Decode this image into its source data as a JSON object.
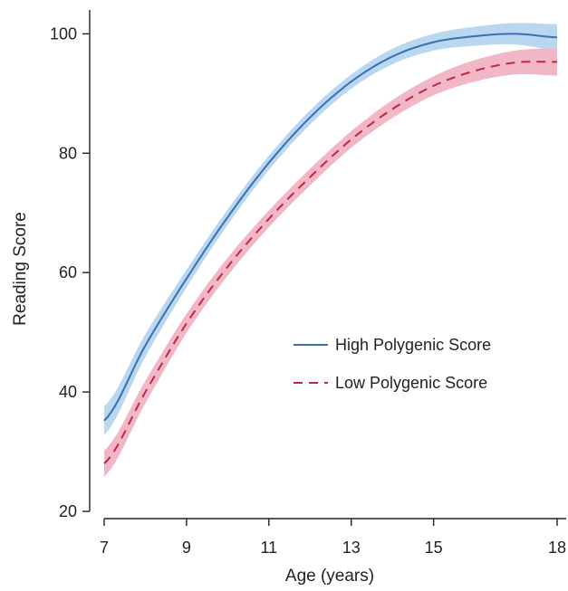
{
  "chart_data": {
    "type": "line",
    "xlabel": "Age (years)",
    "ylabel": "Reading Score",
    "xlim": [
      7,
      18
    ],
    "ylim": [
      20,
      104
    ],
    "xticks": [
      7,
      9,
      11,
      13,
      15,
      18
    ],
    "yticks": [
      20,
      40,
      60,
      80,
      100
    ],
    "grid": false,
    "legend_position": "center-right",
    "series": [
      {
        "name": "High Polygenic Score",
        "color": "#3a6fb4",
        "band_color": "#b9d8f0",
        "line_style": "solid",
        "x": [
          7,
          8,
          9,
          10,
          11,
          12,
          13,
          14,
          15,
          16,
          17,
          18
        ],
        "y": [
          35.2,
          47.8,
          59.0,
          69.3,
          78.4,
          86.0,
          92.0,
          96.2,
          98.6,
          99.6,
          100.0,
          99.4
        ],
        "ci_halfwidth": [
          2.4,
          1.9,
          1.5,
          1.3,
          1.2,
          1.2,
          1.2,
          1.3,
          1.4,
          1.6,
          1.8,
          2.2
        ]
      },
      {
        "name": "Low Polygenic Score",
        "color": "#c0283c",
        "band_color": "#f1b7c6",
        "line_style": "dashed",
        "x": [
          7,
          8,
          9,
          10,
          11,
          12,
          13,
          14,
          15,
          16,
          17,
          18
        ],
        "y": [
          28.0,
          40.0,
          51.5,
          61.0,
          69.0,
          76.0,
          82.3,
          87.4,
          91.3,
          93.8,
          95.2,
          95.3
        ],
        "ci_halfwidth": [
          2.2,
          1.9,
          1.6,
          1.5,
          1.4,
          1.4,
          1.4,
          1.5,
          1.6,
          1.8,
          2.0,
          2.3
        ]
      }
    ]
  }
}
